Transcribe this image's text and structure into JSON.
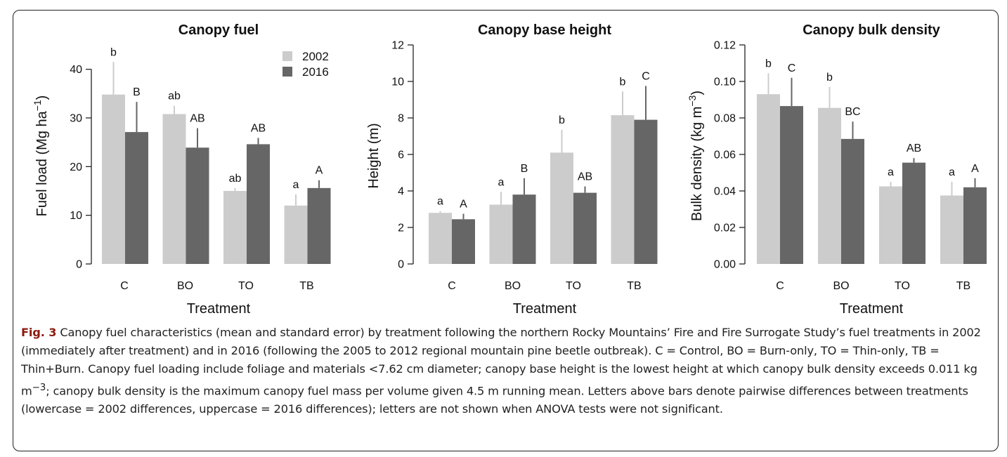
{
  "figure": {
    "caption": {
      "label": "Fig. 3",
      "text_before_sup": " Canopy fuel characteristics (mean and standard error) by treatment following the northern Rocky Mountains’ Fire and Fire Surrogate Study’s fuel treatments in 2002 (immediately after treatment) and in 2016 (following the 2005 to 2012 regional mountain pine beetle outbreak). C = Control, BO = Burn-only, TO = Thin-only, TB = Thin+Burn. Canopy fuel loading include foliage and materials <7.62 cm diameter; canopy base height is the lowest height at which canopy bulk density exceeds 0.011 kg m",
      "sup": "−3",
      "text_after_sup": "; canopy bulk density is the maximum canopy fuel mass per volume given 4.5 m running mean. Letters above bars denote pairwise differences between treatments (lowercase = 2002 differences, uppercase = 2016 differences); letters are not shown when ANOVA tests were not significant."
    }
  },
  "colors": {
    "series_2002": "#cccccc",
    "series_2016": "#666666",
    "axis": "#222222",
    "caption_label": "#8b1a10"
  },
  "chart_data": [
    {
      "type": "bar",
      "title": "Canopy fuel",
      "xlabel": "Treatment",
      "ylabel": "Fuel load (Mg ha",
      "ylabel_sup": "−1",
      "ylabel_close": ")",
      "categories": [
        "C",
        "BO",
        "TO",
        "TB"
      ],
      "ylim": [
        0,
        45
      ],
      "yticks": [
        0,
        10,
        20,
        30,
        40
      ],
      "ytick_labels": [
        "0",
        "10",
        "20",
        "30",
        "40"
      ],
      "legend": {
        "placement": "top-right",
        "entries": [
          "2002",
          "2016"
        ]
      },
      "series": [
        {
          "name": "2002",
          "values": [
            34.8,
            30.8,
            15.0,
            12.0
          ],
          "errors": [
            6.7,
            1.7,
            0.6,
            2.3
          ],
          "letters": [
            "b",
            "ab",
            "ab",
            "a"
          ]
        },
        {
          "name": "2016",
          "values": [
            27.1,
            23.9,
            24.6,
            15.6
          ],
          "errors": [
            6.2,
            4.0,
            1.3,
            1.6
          ],
          "letters": [
            "B",
            "AB",
            "AB",
            "A"
          ]
        }
      ]
    },
    {
      "type": "bar",
      "title": "Canopy base height",
      "xlabel": "Treatment",
      "ylabel": "Height (m)",
      "ylabel_sup": "",
      "ylabel_close": "",
      "categories": [
        "C",
        "BO",
        "TO",
        "TB"
      ],
      "ylim": [
        0,
        12
      ],
      "yticks": [
        0,
        2,
        4,
        6,
        8,
        10,
        12
      ],
      "ytick_labels": [
        "0",
        "2",
        "4",
        "6",
        "8",
        "10",
        "12"
      ],
      "series": [
        {
          "name": "2002",
          "values": [
            2.8,
            3.25,
            6.1,
            8.15
          ],
          "errors": [
            0.1,
            0.7,
            1.25,
            1.3
          ],
          "letters": [
            "a",
            "a",
            "b",
            "b"
          ]
        },
        {
          "name": "2016",
          "values": [
            2.45,
            3.8,
            3.9,
            7.9
          ],
          "errors": [
            0.3,
            0.9,
            0.35,
            1.85
          ],
          "letters": [
            "A",
            "B",
            "AB",
            "C"
          ]
        }
      ]
    },
    {
      "type": "bar",
      "title": "Canopy bulk density",
      "xlabel": "Treatment",
      "ylabel": "Bulk density (kg m",
      "ylabel_sup": "−3",
      "ylabel_close": ")",
      "categories": [
        "C",
        "BO",
        "TO",
        "TB"
      ],
      "ylim": [
        0,
        0.12
      ],
      "yticks": [
        0,
        0.02,
        0.04,
        0.06,
        0.08,
        0.1,
        0.12
      ],
      "ytick_labels": [
        "0.00",
        "0.02",
        "0.04",
        "0.06",
        "0.08",
        "0.10",
        "0.12"
      ],
      "series": [
        {
          "name": "2002",
          "values": [
            0.093,
            0.0855,
            0.0425,
            0.0375
          ],
          "errors": [
            0.0115,
            0.0115,
            0.0025,
            0.0075
          ],
          "letters": [
            "b",
            "b",
            "a",
            "a"
          ]
        },
        {
          "name": "2016",
          "values": [
            0.0865,
            0.0685,
            0.0555,
            0.042
          ],
          "errors": [
            0.0155,
            0.0095,
            0.0025,
            0.005
          ],
          "letters": [
            "C",
            "BC",
            "AB",
            "A"
          ]
        }
      ]
    }
  ]
}
